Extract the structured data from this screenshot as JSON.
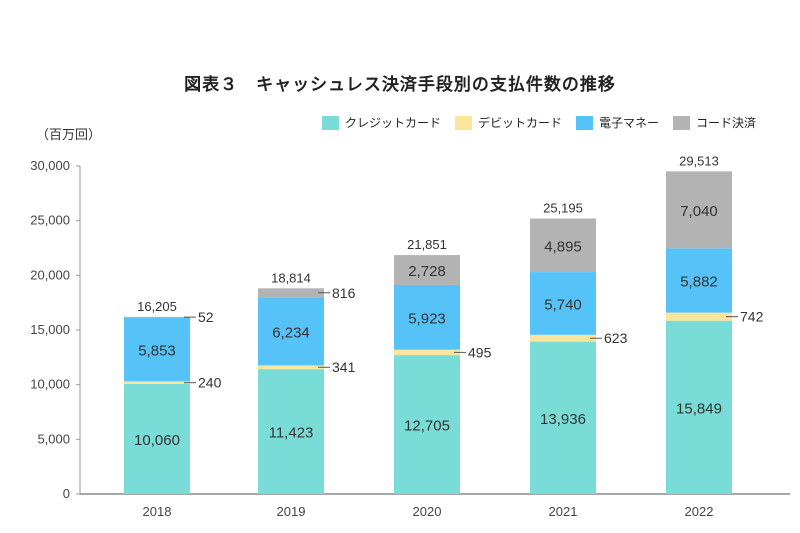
{
  "chart_data": {
    "type": "bar",
    "stacked": true,
    "title": "図表３　キャッシュレス決済手段別の支払件数の推移",
    "ylabel": "（百万回）",
    "xlabel": "",
    "categories": [
      "2018",
      "2019",
      "2020",
      "2021",
      "2022"
    ],
    "ylim": [
      0,
      30000
    ],
    "yticks": [
      0,
      5000,
      10000,
      15000,
      20000,
      25000,
      30000
    ],
    "ytick_labels": [
      "0",
      "5,000",
      "10,000",
      "15,000",
      "20,000",
      "25,000",
      "30,000"
    ],
    "grid": false,
    "legend_position": "top-right",
    "series": [
      {
        "name": "クレジットカード",
        "color": "#7adcd6",
        "values": [
          10060,
          11423,
          12705,
          13936,
          15849
        ],
        "labels": [
          "10,060",
          "11,423",
          "12,705",
          "13,936",
          "15,849"
        ],
        "label_style": "inside"
      },
      {
        "name": "デビットカード",
        "color": "#fbe49c",
        "values": [
          240,
          341,
          495,
          623,
          742
        ],
        "labels": [
          "240",
          "341",
          "495",
          "623",
          "742"
        ],
        "label_style": "side"
      },
      {
        "name": "電子マネー",
        "color": "#55c3f7",
        "values": [
          5853,
          6234,
          5923,
          5740,
          5882
        ],
        "labels": [
          "5,853",
          "6,234",
          "5,923",
          "5,740",
          "5,882"
        ],
        "label_style": "inside"
      },
      {
        "name": "コード決済",
        "color": "#b3b3b3",
        "values": [
          52,
          816,
          2728,
          4895,
          7040
        ],
        "labels": [
          "52",
          "816",
          "2,728",
          "4,895",
          "7,040"
        ],
        "label_style": [
          "side",
          "side",
          "inside",
          "inside",
          "inside"
        ]
      }
    ],
    "totals": [
      16205,
      18814,
      21851,
      25195,
      29513
    ],
    "total_labels": [
      "16,205",
      "18,814",
      "21,851",
      "25,195",
      "29,513"
    ]
  }
}
